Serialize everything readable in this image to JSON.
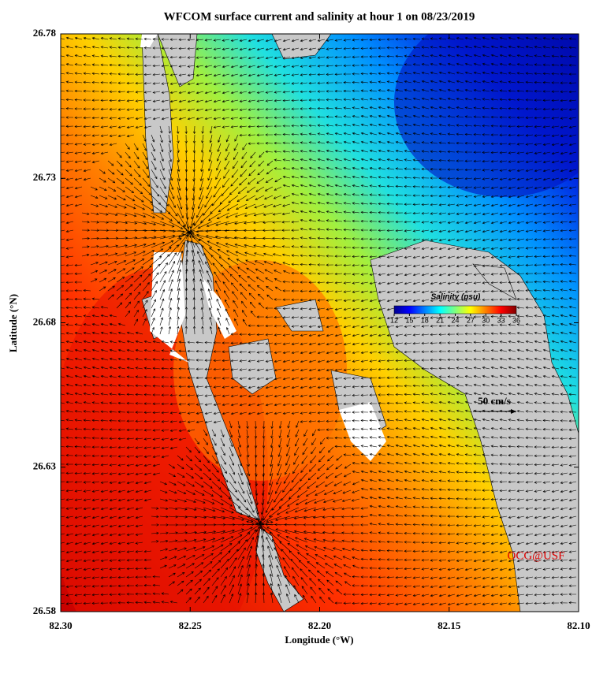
{
  "chart_data": {
    "type": "map",
    "title": "WFCOM surface current and salinity at hour 1 on 08/23/2019",
    "x_label": "Longitude (°W)",
    "y_label": "Latitude (°N)",
    "xlim": [
      82.3,
      82.1
    ],
    "xticks": [
      {
        "value": 82.3,
        "label": "82.30"
      },
      82.25,
      {
        "value": 82.2,
        "label": "82.20"
      },
      82.15,
      {
        "value": 82.1,
        "label": "82.10"
      }
    ],
    "ylim": [
      26.58,
      26.78
    ],
    "yticks": [
      26.58,
      26.63,
      26.68,
      26.73,
      26.78
    ],
    "colorbar": {
      "label": "Salinity (psu)",
      "lim": [
        12,
        36
      ],
      "ticks": [
        12,
        15,
        18,
        21,
        24,
        27,
        30,
        33,
        36
      ]
    },
    "vector_scale_label": "50 cm/s",
    "credit": "OCG@USF"
  }
}
